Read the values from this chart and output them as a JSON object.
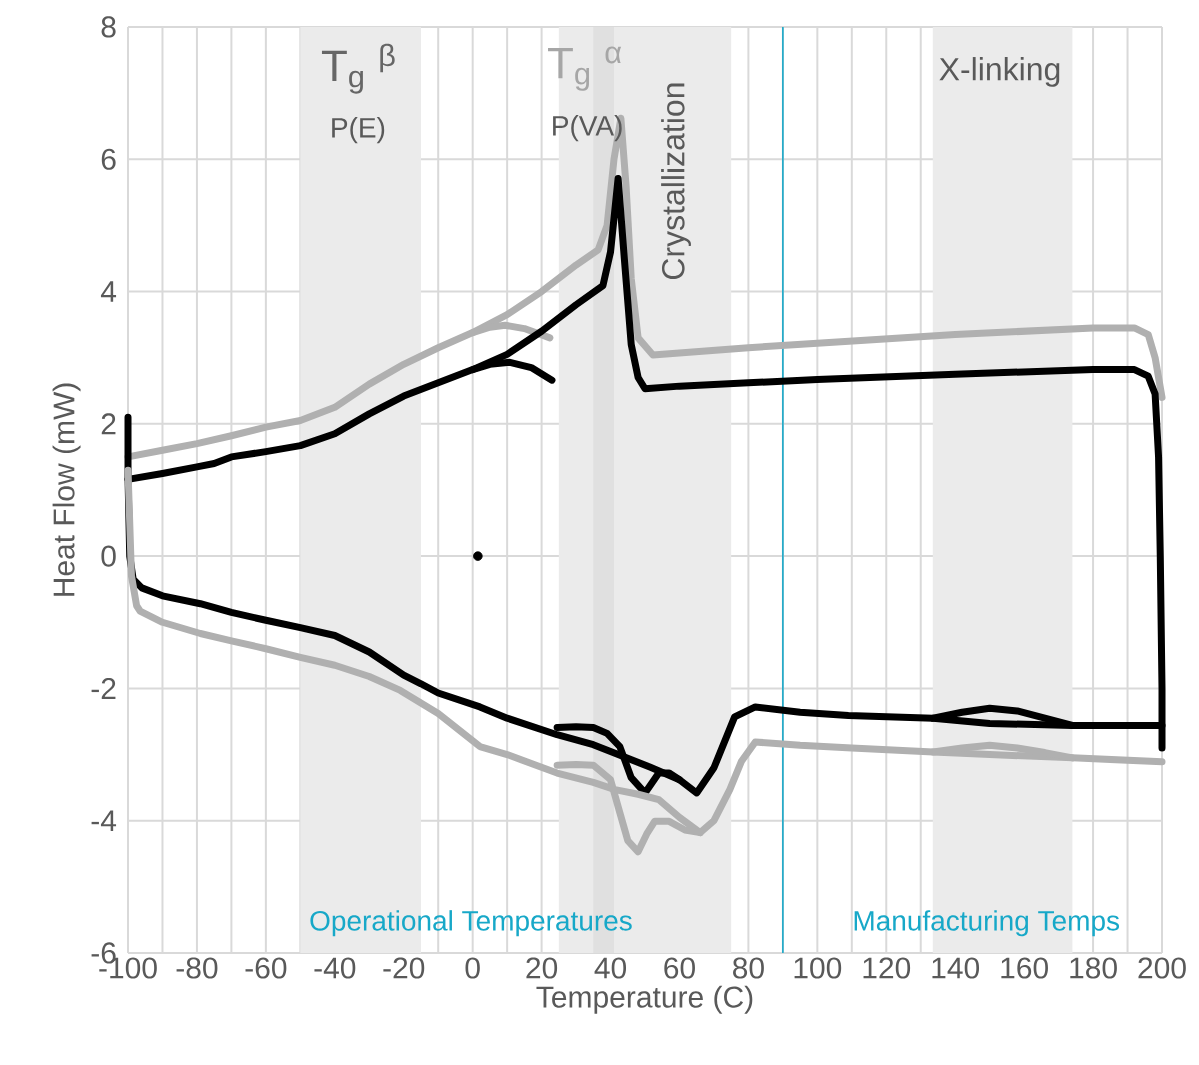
{
  "chart_data": {
    "type": "line",
    "xlabel": "Temperature (C)",
    "ylabel": "Heat Flow (mW)",
    "xlim": [
      -100,
      200
    ],
    "xticks": [
      -100,
      -80,
      -60,
      -40,
      -20,
      0,
      20,
      40,
      60,
      80,
      100,
      120,
      140,
      160,
      180,
      200
    ],
    "ylim": [
      -6,
      8
    ],
    "yticks": [
      -6,
      -4,
      -2,
      0,
      2,
      4,
      6,
      8
    ],
    "grid": true,
    "bands": [
      {
        "axis": "x",
        "from": -50,
        "to": -15,
        "label": "T$_{g}$ $^{β}$",
        "color": "#ebebeb"
      },
      {
        "axis": "x",
        "from": 25,
        "to": 75,
        "label": "Crystallization",
        "color": "#ebebeb"
      },
      {
        "axis": "x",
        "from": 35,
        "to": 41,
        "label": "T$_{g}$ $^{α}$",
        "color": "#e0e0e0"
      },
      {
        "axis": "x",
        "from": 133.5,
        "to": 174,
        "label": "X-linking",
        "color": "#ebebeb"
      }
    ],
    "ref_lines": [
      {
        "axis": "x",
        "value": 90,
        "color": "#17a8c8"
      }
    ],
    "annotations": [
      "P(E)",
      "P(VA)",
      "Operational Temperatures",
      "Manufacturing Temps"
    ],
    "series": [
      {
        "color": "#b0b0b0",
        "x": [
          -100,
          -90,
          -80,
          -70,
          -60,
          -50,
          -40,
          -30,
          -20,
          -10,
          0,
          10,
          20,
          30,
          36.4,
          39,
          41,
          43,
          44.5,
          46,
          48,
          52.3,
          80,
          100,
          140,
          180,
          192,
          196,
          198,
          200
        ],
        "values": [
          1.5,
          1.6,
          1.7,
          1.82,
          1.95,
          2.05,
          2.25,
          2.6,
          2.9,
          3.15,
          3.38,
          3.65,
          4.0,
          4.4,
          4.63,
          5.0,
          6.0,
          6.62,
          5.6,
          4.2,
          3.3,
          3.04,
          3.15,
          3.22,
          3.35,
          3.45,
          3.45,
          3.35,
          3.0,
          2.4
        ]
      },
      {
        "color": "#b0b0b0",
        "x": [
          0,
          5,
          9.4,
          15,
          22.4
        ],
        "values": [
          3.38,
          3.46,
          3.49,
          3.44,
          3.3
        ]
      },
      {
        "color": "#000000",
        "x": [
          -100,
          -90,
          -80,
          -75,
          -70,
          -60,
          -50,
          -40,
          -30,
          -20,
          -10,
          0,
          10,
          20,
          30,
          37.8,
          40,
          42.2,
          44,
          46,
          48,
          50,
          60,
          80,
          100,
          140,
          180,
          192,
          196,
          198,
          199,
          199.5,
          200,
          200
        ],
        "values": [
          1.16,
          1.25,
          1.35,
          1.4,
          1.5,
          1.58,
          1.67,
          1.85,
          2.15,
          2.42,
          2.62,
          2.82,
          3.05,
          3.4,
          3.8,
          4.09,
          4.6,
          5.71,
          4.5,
          3.2,
          2.7,
          2.53,
          2.57,
          2.62,
          2.67,
          2.75,
          2.82,
          2.82,
          2.72,
          2.45,
          1.5,
          0,
          -2.0,
          -2.9
        ]
      },
      {
        "color": "#000000",
        "x": [
          0,
          5,
          10.8,
          17,
          23
        ],
        "values": [
          2.82,
          2.9,
          2.93,
          2.85,
          2.66
        ]
      },
      {
        "color": "#000000",
        "x": [
          -100,
          -100,
          -99.5,
          -98.5,
          -96,
          -90,
          -79,
          -70,
          -60,
          -50,
          -40,
          -30,
          -20,
          -15,
          -10,
          2.1,
          10,
          24.5,
          35,
          41.3,
          51.4,
          60,
          65,
          70,
          76,
          82,
          95,
          109,
          133.6,
          150,
          174,
          200
        ],
        "values": [
          2.1,
          1.2,
          0,
          -0.35,
          -0.48,
          -0.6,
          -0.72,
          -0.85,
          -0.97,
          -1.08,
          -1.2,
          -1.45,
          -1.8,
          -1.93,
          -2.07,
          -2.28,
          -2.45,
          -2.7,
          -2.85,
          -2.98,
          -3.19,
          -3.38,
          -3.58,
          -3.2,
          -2.43,
          -2.28,
          -2.36,
          -2.41,
          -2.45,
          -2.53,
          -2.56,
          -2.56
        ]
      },
      {
        "color": "#000000",
        "x": [
          24.5,
          30,
          35,
          39,
          42.7,
          46,
          50,
          54,
          57,
          60
        ],
        "values": [
          -2.59,
          -2.58,
          -2.59,
          -2.68,
          -2.88,
          -3.35,
          -3.58,
          -3.28,
          -3.28,
          -3.38
        ]
      },
      {
        "color": "#000000",
        "x": [
          133.6,
          142,
          150,
          158,
          166,
          174
        ],
        "values": [
          -2.45,
          -2.36,
          -2.3,
          -2.34,
          -2.45,
          -2.56
        ]
      },
      {
        "color": "#b0b0b0",
        "x": [
          -100,
          -99,
          -97.5,
          -96.5,
          -90,
          -79,
          -70,
          -60,
          -50,
          -40,
          -30,
          -21,
          -10,
          2.1,
          10,
          24.5,
          35,
          41.3,
          48,
          54,
          60,
          66,
          70,
          74.6,
          78,
          82,
          95,
          110,
          133.6,
          150,
          174,
          200
        ],
        "values": [
          1.3,
          -0.3,
          -0.75,
          -0.83,
          -1.0,
          -1.17,
          -1.28,
          -1.4,
          -1.53,
          -1.65,
          -1.82,
          -2.03,
          -2.38,
          -2.88,
          -3.0,
          -3.28,
          -3.42,
          -3.53,
          -3.6,
          -3.68,
          -3.95,
          -4.18,
          -4.0,
          -3.53,
          -3.1,
          -2.81,
          -2.86,
          -2.9,
          -2.96,
          -3.0,
          -3.05,
          -3.11
        ]
      },
      {
        "color": "#b0b0b0",
        "x": [
          24.5,
          30,
          35,
          40,
          42.7,
          45,
          48,
          50.5,
          52.8,
          57,
          61.6,
          66
        ],
        "values": [
          -3.16,
          -3.15,
          -3.16,
          -3.38,
          -3.88,
          -4.3,
          -4.47,
          -4.2,
          -4.01,
          -4.01,
          -4.14,
          -4.18
        ]
      },
      {
        "color": "#b0b0b0",
        "x": [
          133.6,
          142,
          150,
          158,
          166,
          174
        ],
        "values": [
          -2.96,
          -2.9,
          -2.86,
          -2.9,
          -2.97,
          -3.05
        ]
      },
      {
        "type": "scatter",
        "color": "#000000",
        "x": [
          1.5
        ],
        "values": [
          0
        ]
      }
    ]
  }
}
